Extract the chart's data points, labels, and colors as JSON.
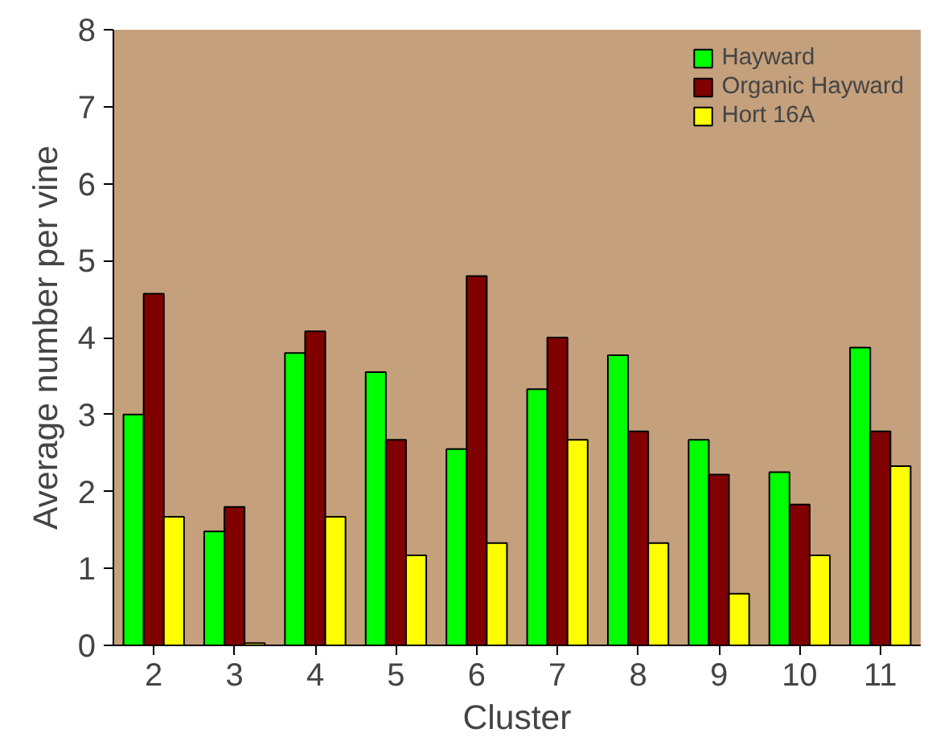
{
  "chart_data": {
    "type": "bar",
    "xlabel": "Cluster",
    "ylabel": "Average number per vine",
    "categories": [
      "2",
      "3",
      "4",
      "5",
      "6",
      "7",
      "8",
      "9",
      "10",
      "11"
    ],
    "series": [
      {
        "name": "Hayward",
        "color": "#00ff00",
        "values": [
          3.0,
          1.48,
          3.8,
          3.55,
          2.55,
          3.33,
          3.77,
          2.67,
          2.25,
          3.87
        ]
      },
      {
        "name": "Organic Hayward",
        "color": "#800000",
        "values": [
          4.57,
          1.8,
          4.08,
          2.67,
          4.8,
          4.0,
          2.78,
          2.22,
          1.83,
          2.78
        ]
      },
      {
        "name": "Hort 16A",
        "color": "#ffff00",
        "values": [
          1.67,
          0.03,
          1.67,
          1.17,
          1.33,
          2.67,
          1.33,
          0.67,
          1.17,
          2.33
        ]
      }
    ],
    "ylim": [
      0,
      8
    ],
    "yticks": [
      0,
      1,
      2,
      3,
      4,
      5,
      6,
      7,
      8
    ],
    "grid": false,
    "legend": "top right"
  }
}
